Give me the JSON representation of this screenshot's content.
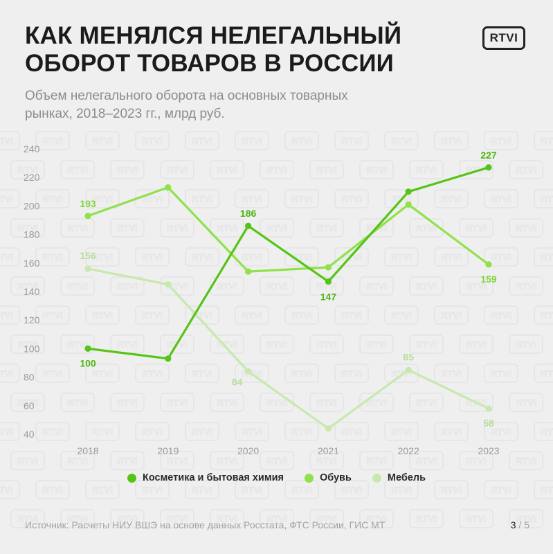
{
  "title": "КАК МЕНЯЛСЯ НЕЛЕГАЛЬНЫЙ ОБОРОТ ТОВАРОВ В РОССИИ",
  "subtitle": "Объем нелегального оборота на основных товарных рынках, 2018–2023 гг., млрд руб.",
  "logo": "RTVI",
  "watermark": "RTVI",
  "source": "Источник: Расчеты НИУ ВШЭ на основе данных Росстата, ФТС России, ГИС МТ",
  "pager": {
    "current": "3",
    "total": "/ 5"
  },
  "chart_data": {
    "type": "line",
    "x": [
      "2018",
      "2019",
      "2020",
      "2021",
      "2022",
      "2023"
    ],
    "ylim": [
      40,
      240
    ],
    "yticks": [
      40,
      60,
      80,
      100,
      120,
      140,
      160,
      180,
      200,
      220,
      240
    ],
    "grid": false,
    "legend": "bottom",
    "series": [
      {
        "name": "Мебель",
        "color": "#c8e8ad",
        "values": [
          156,
          145,
          84,
          44,
          85,
          58
        ],
        "labels": [
          "156",
          "",
          "84",
          "",
          "85",
          "58"
        ]
      },
      {
        "name": "Обувь",
        "color": "#8fe24a",
        "values": [
          193,
          213,
          154,
          157,
          201,
          159
        ],
        "labels": [
          "193",
          "",
          "",
          "",
          "",
          "159"
        ]
      },
      {
        "name": "Косметика и бытовая химия",
        "color": "#55c416",
        "values": [
          100,
          93,
          186,
          147,
          210,
          227
        ],
        "labels": [
          "100",
          "",
          "186",
          "147",
          "",
          "227"
        ]
      }
    ],
    "legend_order": [
      "Косметика и бытовая химия",
      "Обувь",
      "Мебель"
    ]
  }
}
